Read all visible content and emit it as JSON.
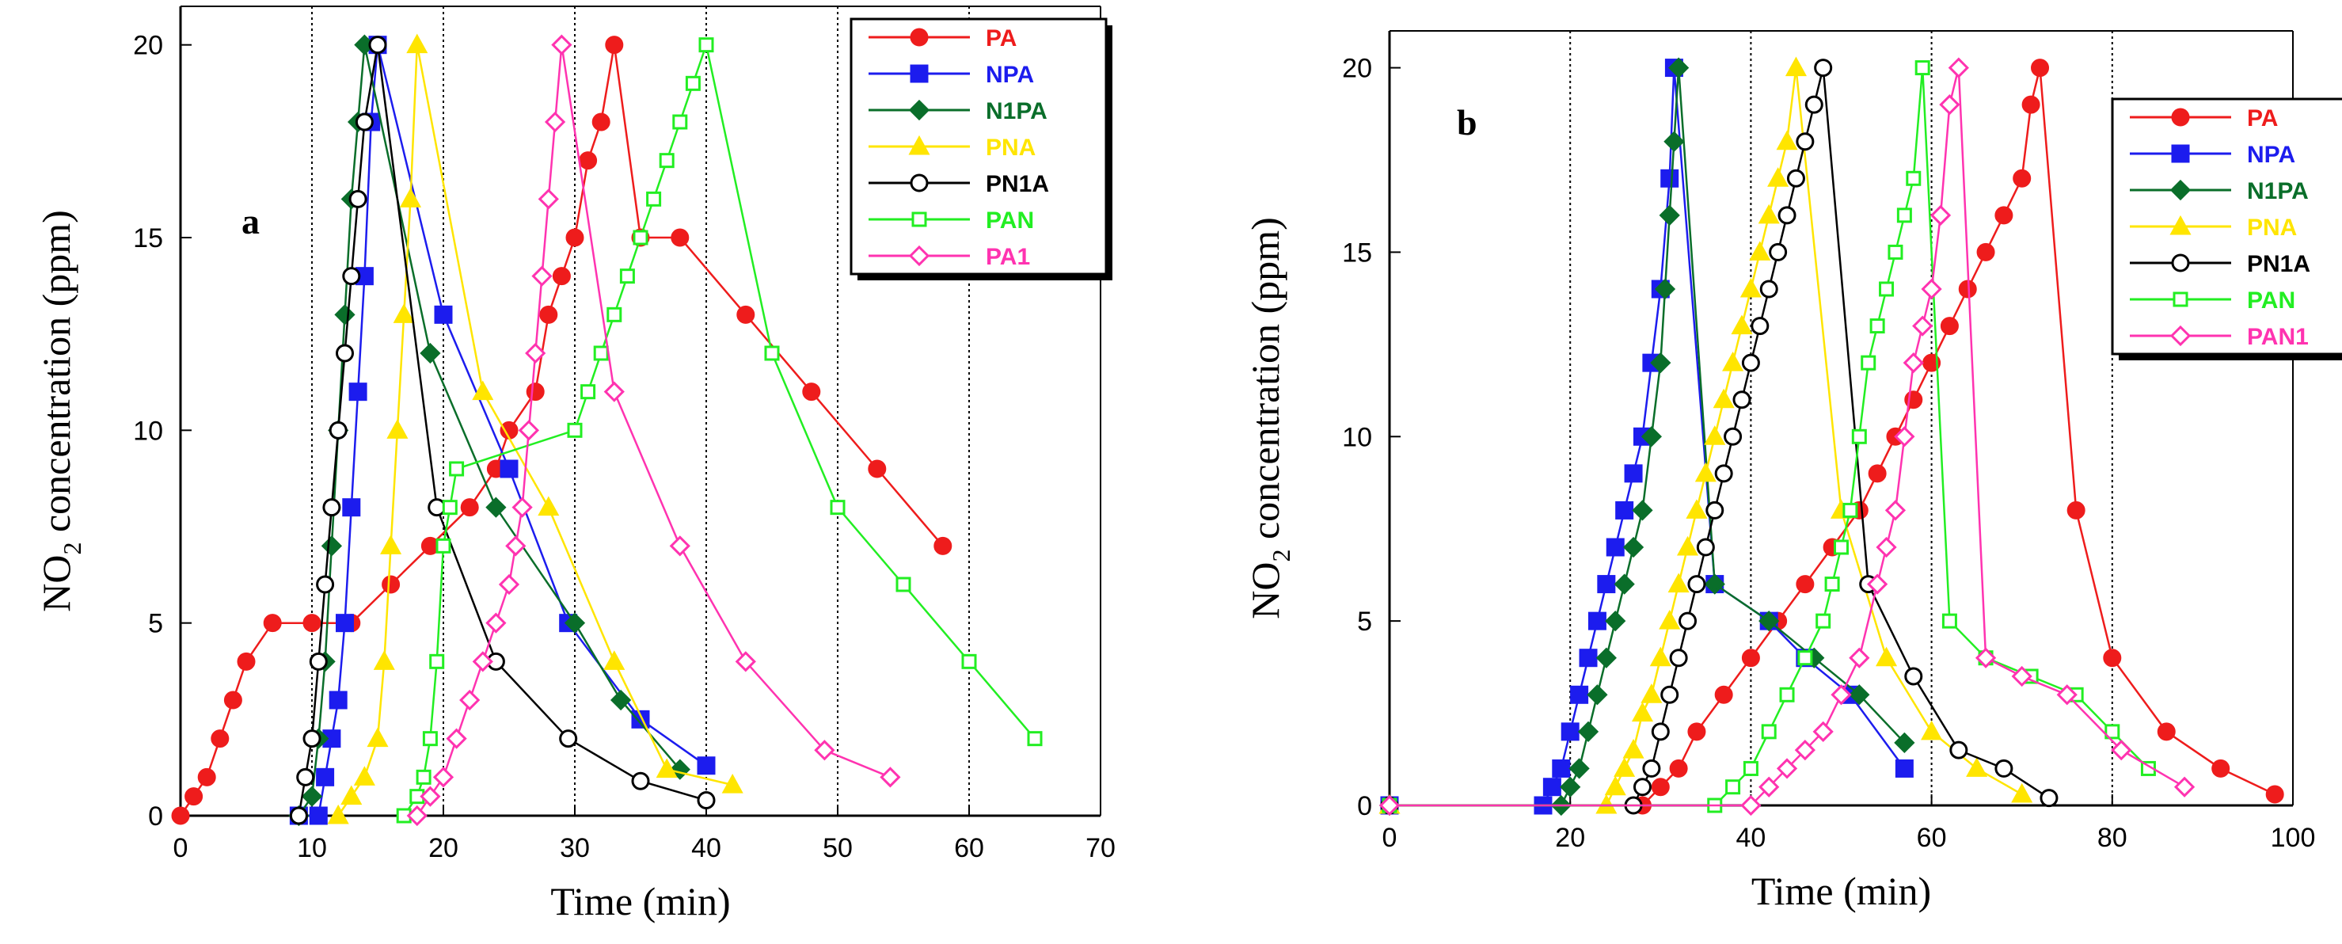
{
  "colors": {
    "PA": "#ee1c1c",
    "NPA": "#1c1cee",
    "N1PA": "#0a6e2a",
    "PNA": "#ffe500",
    "PN1A": "#000000",
    "PAN": "#22ee22",
    "PA1": "#ff33b0",
    "PAN1": "#ff33b0"
  },
  "chart_data": [
    {
      "type": "line",
      "panel_label": "a",
      "xlabel": "Time (min)",
      "ylabel_main": "NO",
      "ylabel_sub": "2",
      "ylabel_rest": " concentration (ppm)",
      "xlim": [
        0,
        70
      ],
      "ylim": [
        0,
        21
      ],
      "xticks": [
        0,
        10,
        20,
        30,
        40,
        50,
        60,
        70
      ],
      "yticks": [
        0,
        5,
        10,
        15,
        20
      ],
      "xtick_labels": [
        "0",
        "10",
        "20",
        "30",
        "40",
        "50",
        "60",
        "70"
      ],
      "ytick_labels": [
        "0",
        "5",
        "10",
        "15",
        "20"
      ],
      "vgrid": [
        10,
        20,
        30,
        40,
        50,
        60
      ],
      "legend": [
        "PA",
        "NPA",
        "N1PA",
        "PNA",
        "PN1A",
        "PAN",
        "PA1"
      ],
      "series": [
        {
          "name": "PA",
          "color_key": "PA",
          "marker": "circle-filled",
          "x": [
            0,
            1,
            2,
            3,
            4,
            5,
            7,
            10,
            13,
            16,
            19,
            22,
            24,
            25,
            27,
            28,
            29,
            30,
            31,
            32,
            33,
            35,
            38,
            43,
            48,
            53,
            58
          ],
          "y": [
            0,
            0.5,
            1,
            2,
            3,
            4,
            5,
            5,
            5,
            6,
            7,
            8,
            9,
            10,
            11,
            13,
            14,
            15,
            17,
            18,
            20,
            15,
            15,
            13,
            11,
            9,
            7
          ]
        },
        {
          "name": "NPA",
          "color_key": "NPA",
          "marker": "square-filled",
          "x": [
            9,
            10.5,
            11,
            11.5,
            12,
            12.5,
            13,
            13.5,
            14,
            14.5,
            15,
            20,
            25,
            29.5,
            35,
            40
          ],
          "y": [
            0,
            0,
            1,
            2,
            3,
            5,
            8,
            11,
            14,
            18,
            20,
            13,
            9,
            5,
            2.5,
            1.3
          ]
        },
        {
          "name": "N1PA",
          "color_key": "N1PA",
          "marker": "diamond-filled",
          "x": [
            9,
            10,
            10.5,
            11,
            11.5,
            12,
            12.5,
            13,
            13.5,
            14,
            19,
            24,
            30,
            33.5,
            38
          ],
          "y": [
            0,
            0.5,
            2,
            4,
            7,
            10,
            13,
            16,
            18,
            20,
            12,
            8,
            5,
            3,
            1.2
          ]
        },
        {
          "name": "PNA",
          "color_key": "PNA",
          "marker": "triangle-filled",
          "x": [
            12,
            13,
            14,
            15,
            15.5,
            16,
            16.5,
            17,
            17.5,
            18,
            23,
            28,
            33,
            37,
            42
          ],
          "y": [
            0,
            0.5,
            1,
            2,
            4,
            7,
            10,
            13,
            16,
            20,
            11,
            8,
            4,
            1.2,
            0.8
          ]
        },
        {
          "name": "PN1A",
          "color_key": "PN1A",
          "marker": "circle-open",
          "x": [
            9,
            9.5,
            10,
            10.5,
            11,
            11.5,
            12,
            12.5,
            13,
            13.5,
            14,
            15,
            19.5,
            24,
            29.5,
            35,
            40
          ],
          "y": [
            0,
            1,
            2,
            4,
            6,
            8,
            10,
            12,
            14,
            16,
            18,
            20,
            8,
            4,
            2,
            0.9,
            0.4
          ]
        },
        {
          "name": "PAN",
          "color_key": "PAN",
          "marker": "square-open",
          "x": [
            17,
            18,
            18.5,
            19,
            19.5,
            20,
            20.5,
            21,
            30,
            31,
            32,
            33,
            34,
            35,
            36,
            37,
            38,
            39,
            40,
            45,
            50,
            55,
            60,
            65
          ],
          "y": [
            0,
            0.5,
            1,
            2,
            4,
            7,
            8,
            9,
            10,
            11,
            12,
            13,
            14,
            15,
            16,
            17,
            18,
            19,
            20,
            12,
            8,
            6,
            4,
            2
          ]
        },
        {
          "name": "PA1",
          "color_key": "PA1",
          "marker": "diamond-open",
          "x": [
            18,
            19,
            20,
            21,
            22,
            23,
            24,
            25,
            25.5,
            26,
            26.5,
            27,
            27.5,
            28,
            28.5,
            29,
            33,
            38,
            43,
            49,
            54
          ],
          "y": [
            0,
            0.5,
            1,
            2,
            3,
            4,
            5,
            6,
            7,
            8,
            10,
            12,
            14,
            16,
            18,
            20,
            11,
            7,
            4,
            1.7,
            1
          ]
        }
      ]
    },
    {
      "type": "line",
      "panel_label": "b",
      "xlabel": "Time (min)",
      "ylabel_main": "NO",
      "ylabel_sub": "2",
      "ylabel_rest": " concentration (ppm)",
      "xlim": [
        0,
        100
      ],
      "ylim": [
        0,
        21
      ],
      "xticks": [
        0,
        20,
        40,
        60,
        80,
        100
      ],
      "yticks": [
        0,
        5,
        10,
        15,
        20
      ],
      "xtick_labels": [
        "0",
        "20",
        "40",
        "60",
        "80",
        "100"
      ],
      "ytick_labels": [
        "0",
        "5",
        "10",
        "15",
        "20"
      ],
      "vgrid": [
        20,
        40,
        60,
        80
      ],
      "legend": [
        "PA",
        "NPA",
        "N1PA",
        "PNA",
        "PN1A",
        "PAN",
        "PAN1"
      ],
      "series": [
        {
          "name": "PA",
          "color_key": "PA",
          "marker": "circle-filled",
          "x": [
            0,
            28,
            30,
            32,
            34,
            37,
            40,
            43,
            46,
            49,
            52,
            54,
            56,
            58,
            60,
            62,
            64,
            66,
            68,
            70,
            71,
            72,
            76,
            80,
            86,
            92,
            98
          ],
          "y": [
            0,
            0,
            0.5,
            1,
            2,
            3,
            4,
            5,
            6,
            7,
            8,
            9,
            10,
            11,
            12,
            13,
            14,
            15,
            16,
            17,
            19,
            20,
            8,
            4,
            2,
            1,
            0.3
          ]
        },
        {
          "name": "NPA",
          "color_key": "NPA",
          "marker": "square-filled",
          "x": [
            0,
            17,
            18,
            19,
            20,
            21,
            22,
            23,
            24,
            25,
            26,
            27,
            28,
            29,
            30,
            31,
            31.5,
            36,
            42,
            46,
            51,
            57
          ],
          "y": [
            0,
            0,
            0.5,
            1,
            2,
            3,
            4,
            5,
            6,
            7,
            8,
            9,
            10,
            12,
            14,
            17,
            20,
            6,
            5,
            4,
            3,
            1
          ]
        },
        {
          "name": "N1PA",
          "color_key": "N1PA",
          "marker": "diamond-filled",
          "x": [
            0,
            19,
            20,
            21,
            22,
            23,
            24,
            25,
            26,
            27,
            28,
            29,
            30,
            30.5,
            31,
            31.5,
            32,
            36,
            42,
            47,
            52,
            57
          ],
          "y": [
            0,
            0,
            0.5,
            1,
            2,
            3,
            4,
            5,
            6,
            7,
            8,
            10,
            12,
            14,
            16,
            18,
            20,
            6,
            5,
            4,
            3,
            1.7
          ]
        },
        {
          "name": "PNA",
          "color_key": "PNA",
          "marker": "triangle-filled",
          "x": [
            0,
            24,
            25,
            26,
            27,
            28,
            29,
            30,
            31,
            32,
            33,
            34,
            35,
            36,
            37,
            38,
            39,
            40,
            41,
            42,
            43,
            44,
            45,
            50,
            55,
            60,
            65,
            70
          ],
          "y": [
            0,
            0,
            0.5,
            1,
            1.5,
            2.5,
            3,
            4,
            5,
            6,
            7,
            8,
            9,
            10,
            11,
            12,
            13,
            14,
            15,
            16,
            17,
            18,
            20,
            8,
            4,
            2,
            1,
            0.3
          ]
        },
        {
          "name": "PN1A",
          "color_key": "PN1A",
          "marker": "circle-open",
          "x": [
            0,
            27,
            28,
            29,
            30,
            31,
            32,
            33,
            34,
            35,
            36,
            37,
            38,
            39,
            40,
            41,
            42,
            43,
            44,
            45,
            46,
            47,
            48,
            53,
            58,
            63,
            68,
            73
          ],
          "y": [
            0,
            0,
            0.5,
            1,
            2,
            3,
            4,
            5,
            6,
            7,
            8,
            9,
            10,
            11,
            12,
            13,
            14,
            15,
            16,
            17,
            18,
            19,
            20,
            6,
            3.5,
            1.5,
            1,
            0.2
          ]
        },
        {
          "name": "PAN",
          "color_key": "PAN",
          "marker": "square-open",
          "x": [
            0,
            36,
            38,
            40,
            42,
            44,
            46,
            48,
            49,
            50,
            51,
            52,
            53,
            54,
            55,
            56,
            57,
            58,
            59,
            62,
            66,
            71,
            76,
            80,
            84
          ],
          "y": [
            0,
            0,
            0.5,
            1,
            2,
            3,
            4,
            5,
            6,
            7,
            8,
            10,
            12,
            13,
            14,
            15,
            16,
            17,
            20,
            5,
            4,
            3.5,
            3,
            2,
            1
          ]
        },
        {
          "name": "PAN1",
          "color_key": "PAN1",
          "marker": "diamond-open",
          "x": [
            0,
            40,
            42,
            44,
            46,
            48,
            50,
            52,
            54,
            55,
            56,
            57,
            58,
            59,
            60,
            61,
            62,
            63,
            66,
            70,
            75,
            81,
            88
          ],
          "y": [
            0,
            0,
            0.5,
            1,
            1.5,
            2,
            3,
            4,
            6,
            7,
            8,
            10,
            12,
            13,
            14,
            16,
            19,
            20,
            4,
            3.5,
            3,
            1.5,
            0.5
          ]
        }
      ]
    }
  ]
}
